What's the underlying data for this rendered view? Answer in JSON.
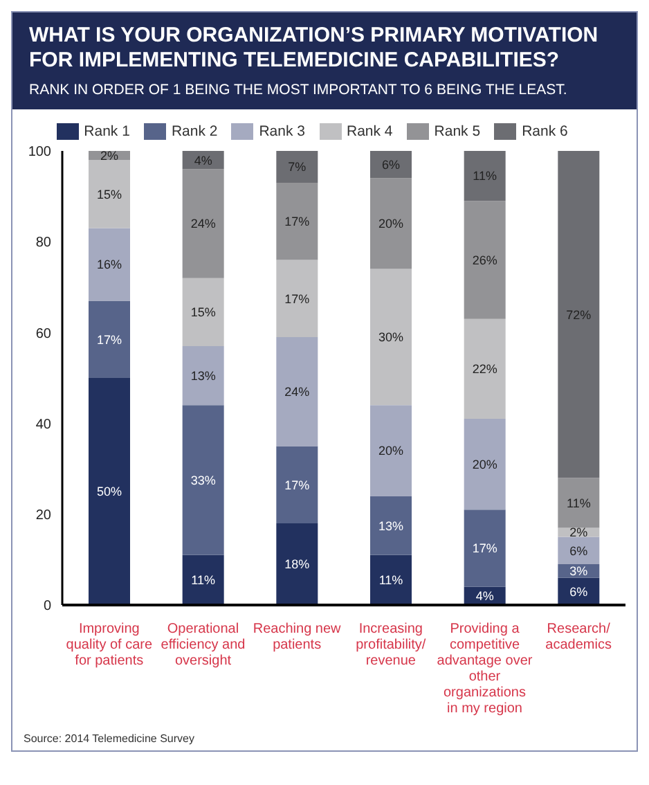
{
  "chart_data": {
    "type": "bar",
    "title": "WHAT IS YOUR ORGANIZATION’S PRIMARY MOTIVATION FOR IMPLEMENTING TELEMEDICINE CAPABILITIES?",
    "subtitle": "RANK IN ORDER OF 1 BEING THE MOST IMPORTANT TO 6 BEING THE LEAST.",
    "categories": [
      "Improving quality of care for patients",
      "Operational efficiency and oversight",
      "Reaching new patients",
      "Increasing profitability/ revenue",
      "Providing a competitive advantage over other organizations in my region",
      "Research/ academics"
    ],
    "stacked": true,
    "series": [
      {
        "name": "Rank 1",
        "color": "#22315f",
        "values": [
          50,
          11,
          18,
          11,
          4,
          6
        ],
        "value_labels": [
          "50%",
          "11%",
          "18%",
          "11%",
          "4%",
          "6%"
        ]
      },
      {
        "name": "Rank 2",
        "color": "#57648a",
        "values": [
          17,
          33,
          17,
          13,
          17,
          3
        ],
        "value_labels": [
          "17%",
          "33%",
          "17%",
          "13%",
          "17%",
          "3%"
        ]
      },
      {
        "name": "Rank 3",
        "color": "#a5aac0",
        "values": [
          16,
          13,
          24,
          20,
          20,
          6
        ],
        "value_labels": [
          "16%",
          "13%",
          "24%",
          "20%",
          "20%",
          "6%"
        ]
      },
      {
        "name": "Rank 4",
        "color": "#c0c0c2",
        "values": [
          15,
          15,
          17,
          30,
          22,
          2
        ],
        "value_labels": [
          "15%",
          "15%",
          "17%",
          "30%",
          "22%",
          "2%"
        ]
      },
      {
        "name": "Rank 5",
        "color": "#939396",
        "values": [
          2,
          24,
          17,
          20,
          26,
          11
        ],
        "value_labels": [
          "2%",
          "24%",
          "17%",
          "20%",
          "26%",
          "11%"
        ]
      },
      {
        "name": "Rank 6",
        "color": "#6c6d72",
        "values": [
          null,
          4,
          7,
          6,
          11,
          72
        ],
        "value_labels": [
          null,
          "4%",
          "7%",
          "6%",
          "11%",
          "72%"
        ]
      }
    ],
    "ylim": [
      0,
      100
    ],
    "yticks": [
      0,
      20,
      40,
      60,
      80,
      100
    ],
    "grid": false,
    "legend": "top",
    "annotations": [
      "Source: 2014 Telemedicine Survey"
    ]
  }
}
